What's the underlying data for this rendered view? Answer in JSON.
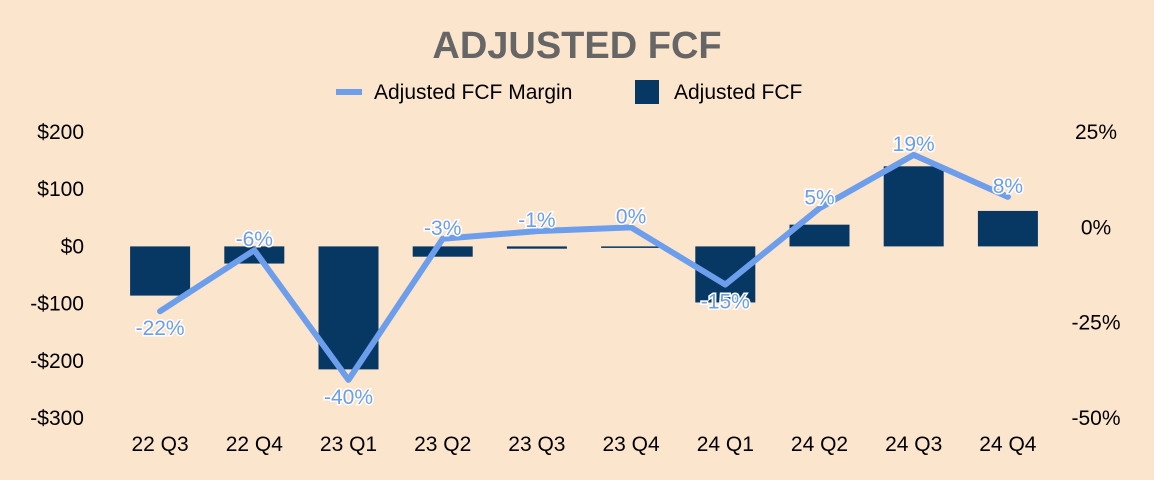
{
  "chart_data": {
    "type": "bar",
    "title": "ADJUSTED FCF",
    "categories": [
      "22 Q3",
      "22 Q4",
      "23 Q1",
      "23 Q2",
      "23 Q3",
      "23 Q4",
      "24 Q1",
      "24 Q2",
      "24 Q3",
      "24 Q4"
    ],
    "series": [
      {
        "name": "Adjusted FCF",
        "type": "bar",
        "axis": "left",
        "color": "#073763",
        "values": [
          -86,
          -30,
          -215,
          -18,
          -4,
          -2,
          -98,
          38,
          140,
          62
        ]
      },
      {
        "name": "Adjusted FCF Margin",
        "type": "line",
        "axis": "right",
        "color": "#6d9eeb",
        "values": [
          -22,
          -6,
          -40,
          -3,
          -1,
          0,
          -15,
          5,
          19,
          8
        ],
        "labels": [
          "-22%",
          "-6%",
          "-40%",
          "-3%",
          "-1%",
          "0%",
          "-15%",
          "5%",
          "19%",
          "8%"
        ]
      }
    ],
    "legend": {
      "position": "top-center",
      "entries": [
        {
          "label": "Adjusted FCF Margin",
          "kind": "line",
          "color": "#6d9eeb"
        },
        {
          "label": "Adjusted FCF",
          "kind": "box",
          "color": "#073763"
        }
      ]
    },
    "y_left": {
      "ylim": [
        -300,
        200
      ],
      "ticks": [
        200,
        100,
        0,
        -100,
        -200,
        -300
      ],
      "tick_labels": [
        "$200",
        "$100",
        "$0",
        "-$100",
        "-$200",
        "-$300"
      ]
    },
    "y_right": {
      "ylim": [
        -50,
        25
      ],
      "ticks": [
        25,
        0,
        -25,
        -50
      ],
      "tick_labels": [
        "25%",
        "0%",
        "-25%",
        "-50%"
      ]
    },
    "grid": false
  }
}
